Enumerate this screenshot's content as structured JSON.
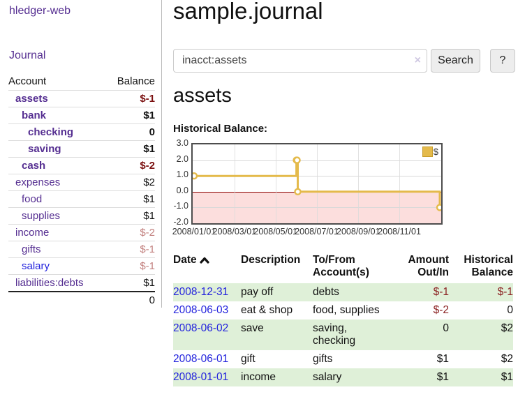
{
  "colors": {
    "link_purple": "#552e91",
    "link_blue": "#2323dd",
    "negative_strong": "#7b1111",
    "negative_soft": "#c2807e",
    "table_negative": "#8b2222",
    "row_green": "#dff0d8",
    "chart_gold": "#e4ba4b",
    "chart_pink": "#fcdedd",
    "zero_line": "#8b0000",
    "chart_border": "#4d4d4d"
  },
  "sidebar": {
    "brand": "hledger-web",
    "journal_link": "Journal",
    "accounts_table": {
      "account_header": "Account",
      "balance_header": "Balance",
      "rows": [
        {
          "name": "assets",
          "balance": "$-1",
          "indent": 1,
          "bold": true,
          "neg": "strong"
        },
        {
          "name": "bank",
          "balance": "$1",
          "indent": 2,
          "bold": true
        },
        {
          "name": "checking",
          "balance": "0",
          "indent": 3,
          "bold": true
        },
        {
          "name": "saving",
          "balance": "$1",
          "indent": 3,
          "bold": true
        },
        {
          "name": "cash",
          "balance": "$-2",
          "indent": 2,
          "bold": true,
          "neg": "strong"
        },
        {
          "name": "expenses",
          "balance": "$2",
          "indent": 1
        },
        {
          "name": "food",
          "balance": "$1",
          "indent": 2
        },
        {
          "name": "supplies",
          "balance": "$1",
          "indent": 2
        },
        {
          "name": "income",
          "balance": "$-2",
          "indent": 1,
          "neg": "soft"
        },
        {
          "name": "gifts",
          "balance": "$-1",
          "indent": 2,
          "neg": "soft"
        },
        {
          "name": "salary",
          "balance": "$-1",
          "indent": 2,
          "neg": "soft",
          "link_blue": true
        },
        {
          "name": "liabilities:debts",
          "balance": "$1",
          "indent": 1
        }
      ],
      "total": "0"
    }
  },
  "header": {
    "title": "sample.journal"
  },
  "search": {
    "value": "inacct:assets",
    "clear_icon": "×",
    "search_button": "Search",
    "help_button": "?"
  },
  "account_page": {
    "title": "assets",
    "chart_label": "Historical Balance:"
  },
  "chart_data": {
    "type": "line",
    "style": "step-after",
    "title": "Historical Balance",
    "legend": "$",
    "legend_position": "top-right",
    "grid": true,
    "ylim": [
      -2.0,
      3.0
    ],
    "yticks": [
      "3.0",
      "2.0",
      "1.0",
      "0.0",
      "-1.0",
      "-2.0"
    ],
    "ytick_values": [
      3.0,
      2.0,
      1.0,
      0.0,
      -1.0,
      -2.0
    ],
    "xrange": [
      "2008-01-01",
      "2008-12-31"
    ],
    "xticks": [
      "2008/01/01",
      "2008/03/01",
      "2008/05/01",
      "2008/07/01",
      "2008/09/01",
      "2008/11/01"
    ],
    "negative_region_shaded": true,
    "points": [
      {
        "date": "2008-01-01",
        "value": 1
      },
      {
        "date": "2008-06-01",
        "value": 2
      },
      {
        "date": "2008-06-02",
        "value": 2
      },
      {
        "date": "2008-06-03",
        "value": 0
      },
      {
        "date": "2008-12-31",
        "value": -1
      }
    ]
  },
  "transactions": {
    "headers": {
      "date": "Date",
      "description": "Description",
      "accounts": "To/From Account(s)",
      "amount": "Amount Out/In",
      "balance": "Historical Balance"
    },
    "sort": "date ascending",
    "rows": [
      {
        "date": "2008-12-31",
        "description": "pay off",
        "accounts": "debts",
        "amount": "$-1",
        "balance": "$-1",
        "amount_neg": true,
        "balance_neg": true
      },
      {
        "date": "2008-06-03",
        "description": "eat & shop",
        "accounts": "food, supplies",
        "amount": "$-2",
        "balance": "0",
        "amount_neg": true
      },
      {
        "date": "2008-06-02",
        "description": "save",
        "accounts": "saving, checking",
        "amount": "0",
        "balance": "$2"
      },
      {
        "date": "2008-06-01",
        "description": "gift",
        "accounts": "gifts",
        "amount": "$1",
        "balance": "$2"
      },
      {
        "date": "2008-01-01",
        "description": "income",
        "accounts": "salary",
        "amount": "$1",
        "balance": "$1"
      }
    ]
  }
}
